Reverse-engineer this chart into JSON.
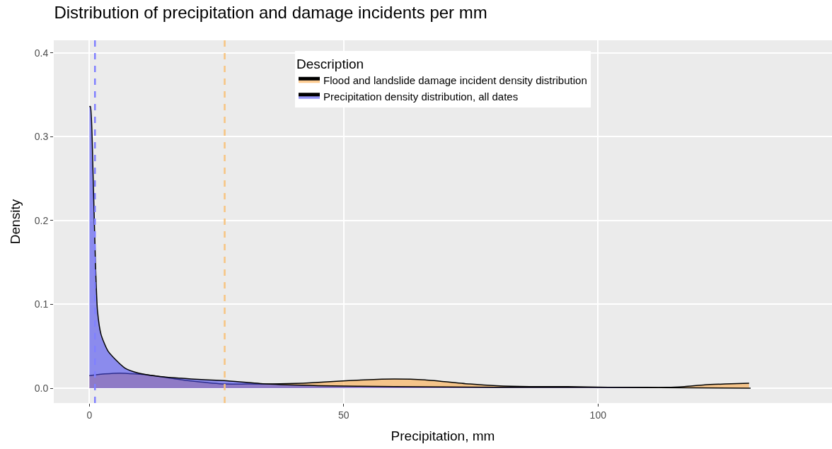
{
  "chart_data": {
    "type": "area",
    "title": "Distribution of precipitation and damage incidents per mm",
    "xlabel": "Precipitation, mm",
    "ylabel": "Density",
    "legend_title": "Description",
    "series": [
      {
        "name": "Flood and landslide damage incident density distribution",
        "color": "#fbaa4a",
        "x": [
          0,
          3,
          6,
          9,
          12.5,
          17,
          20.9,
          26.6,
          31,
          36,
          42,
          48,
          54,
          60,
          66,
          74.8,
          80,
          86.5,
          94,
          102,
          108,
          113.6,
          117,
          121,
          125,
          129.7
        ],
        "values": [
          0.015,
          0.017,
          0.018,
          0.017,
          0.015,
          0.011,
          0.008,
          0.005,
          0.005,
          0.005,
          0.006,
          0.008,
          0.01,
          0.011,
          0.01,
          0.005,
          0.003,
          0.002,
          0.002,
          0.001,
          0.001,
          0.001,
          0.002,
          0.004,
          0.005,
          0.006
        ]
      },
      {
        "name": "Precipitation density distribution, all dates",
        "color": "#4b4bef",
        "x": [
          0,
          0.2,
          0.7,
          1.2,
          1.6,
          2.3,
          3.7,
          7,
          9.7,
          13.9,
          20,
          26.5,
          34.8,
          45,
          60,
          80,
          100,
          130
        ],
        "values": [
          0.336,
          0.336,
          0.261,
          0.149,
          0.092,
          0.064,
          0.044,
          0.024,
          0.018,
          0.014,
          0.011,
          0.009,
          0.005,
          0.003,
          0.002,
          0.001,
          0.001,
          0
        ]
      }
    ],
    "ref_lines": [
      {
        "axis": "x",
        "value": 1.1,
        "color": "#8080ff",
        "line_style": "dashed"
      },
      {
        "axis": "x",
        "value": 26.6,
        "color": "#f7c480",
        "line_style": "dashed"
      }
    ],
    "xlim": [
      -7,
      146
    ],
    "ylim": [
      -0.0177,
      0.415
    ],
    "xticks": [
      0,
      50,
      100
    ],
    "yticks": [
      {
        "value": 0,
        "label": "0.0"
      },
      {
        "value": 0.1,
        "label": "0.1"
      },
      {
        "value": 0.2,
        "label": "0.2"
      },
      {
        "value": 0.3,
        "label": "0.3"
      },
      {
        "value": 0.4,
        "label": "0.4"
      }
    ],
    "grid": true,
    "legend": "top"
  }
}
